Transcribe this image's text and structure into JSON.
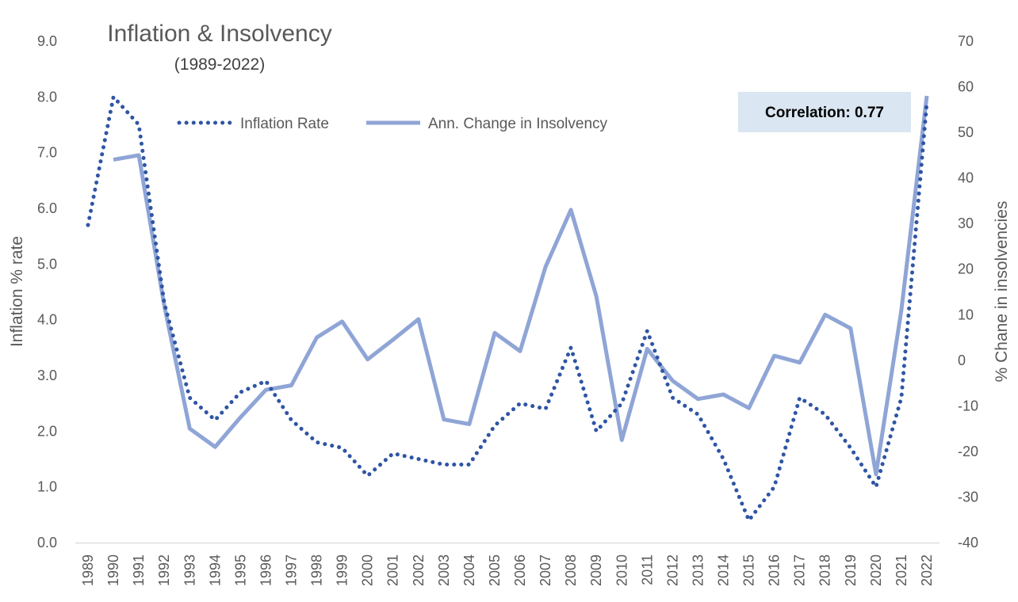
{
  "chart_data": {
    "type": "line",
    "title": "Inflation & Insolvency",
    "subtitle": "(1989-2022)",
    "ylabel": "Inflation % rate",
    "y2label": "% Chane in insolvencies",
    "ylim": [
      0,
      9
    ],
    "y2lim": [
      -40,
      70
    ],
    "yticks": [
      "0.0",
      "1.0",
      "2.0",
      "3.0",
      "4.0",
      "5.0",
      "6.0",
      "7.0",
      "8.0",
      "9.0"
    ],
    "y2ticks": [
      "-40",
      "-30",
      "-20",
      "-10",
      "0",
      "10",
      "20",
      "30",
      "40",
      "50",
      "60",
      "70"
    ],
    "categories": [
      "1989",
      "1990",
      "1991",
      "1992",
      "1993",
      "1994",
      "1995",
      "1996",
      "1997",
      "1998",
      "1999",
      "2000",
      "2001",
      "2002",
      "2003",
      "2004",
      "2005",
      "2006",
      "2007",
      "2008",
      "2009",
      "2010",
      "2011",
      "2012",
      "2013",
      "2014",
      "2015",
      "2016",
      "2017",
      "2018",
      "2019",
      "2020",
      "2021",
      "2022"
    ],
    "series": [
      {
        "name": "Inflation Rate",
        "axis": "left",
        "style": "dotted",
        "color": "#2f55a4",
        "values": [
          5.7,
          8.0,
          7.5,
          4.3,
          2.6,
          2.2,
          2.7,
          2.9,
          2.2,
          1.8,
          1.7,
          1.2,
          1.6,
          1.5,
          1.4,
          1.4,
          2.1,
          2.5,
          2.4,
          3.5,
          2.0,
          2.5,
          3.8,
          2.6,
          2.3,
          1.5,
          0.4,
          1.0,
          2.6,
          2.3,
          1.7,
          1.0,
          2.6,
          7.9
        ]
      },
      {
        "name": "Ann. Change in Insolvency",
        "axis": "right",
        "style": "solid",
        "color": "#8fa5d6",
        "values": [
          null,
          44.0,
          45.0,
          12.0,
          -15.0,
          -19.0,
          -12.5,
          -6.5,
          -5.5,
          5.0,
          8.5,
          0.2,
          4.5,
          9.0,
          -13.0,
          -14.0,
          6.0,
          2.0,
          20.5,
          33.0,
          14.0,
          -17.5,
          2.5,
          -4.5,
          -8.5,
          -7.5,
          -10.5,
          1.0,
          -0.5,
          10.0,
          7.0,
          -25.0,
          11.0,
          58.0
        ]
      }
    ],
    "annotation": "Correlation: 0.77",
    "legend": "top-center",
    "grid": false
  }
}
